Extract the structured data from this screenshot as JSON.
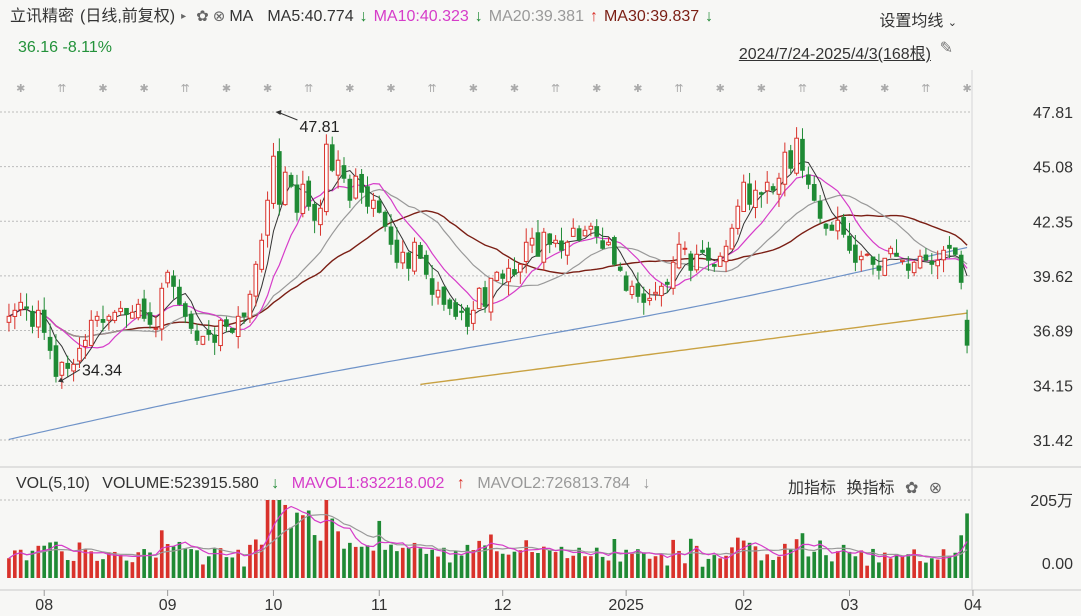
{
  "header": {
    "stock_name": "立讯精密",
    "period_mode": "(日线,前复权)",
    "ma_label": "MA",
    "ma5": "MA5:40.774",
    "ma10": "MA10:40.323",
    "ma20": "MA20:39.381",
    "ma30": "MA30:39.837",
    "ma5_arrow": "↓",
    "ma10_arrow": "↓",
    "ma20_arrow": "↑",
    "ma30_arrow": "↓",
    "settings_label": "设置均线",
    "price": "36.16",
    "change_pct": "-8.11%",
    "date_range": "2024/7/24-2025/4/3(168根)"
  },
  "volume_header": {
    "title": "VOL(5,10)",
    "volume": "VOLUME:523915.580",
    "volume_arrow": "↓",
    "mavol1": "MAVOL1:832218.002",
    "mavol1_arrow": "↑",
    "mavol2": "MAVOL2:726813.784",
    "mavol2_arrow": "↓",
    "add_indicator": "加指标",
    "switch_indicator": "换指标"
  },
  "colors": {
    "up": "#d9322b",
    "down": "#1f8a34",
    "ma5": "#333333",
    "ma10": "#d63cc9",
    "ma20": "#999999",
    "ma30": "#7a1e14",
    "ma_long": "#6f93c8",
    "ma_extra": "#c9a243"
  },
  "chart_data": {
    "type": "candlestick",
    "price_axis_ticks": [
      "47.81",
      "45.08",
      "42.35",
      "39.62",
      "36.89",
      "34.15",
      "31.42"
    ],
    "price_range": [
      31.42,
      47.81
    ],
    "volume_axis_ticks": [
      "205万",
      "0.00"
    ],
    "volume_range_wan": [
      0,
      205
    ],
    "x_tick_labels": [
      "08",
      "09",
      "10",
      "11",
      "12",
      "2025",
      "02",
      "03",
      "04"
    ],
    "x_tick_index": [
      6,
      27,
      45,
      63,
      84,
      105,
      125,
      143,
      164
    ],
    "max_annotation": {
      "label": "47.81",
      "index": 45,
      "value": 47.81
    },
    "min_annotation": {
      "label": "34.34",
      "index": 8,
      "value": 34.34
    },
    "candles_close": [
      37.6,
      37.9,
      38.3,
      38.0,
      37.1,
      37.9,
      36.8,
      35.9,
      34.6,
      35.3,
      35.0,
      35.2,
      36.0,
      36.4,
      37.4,
      37.6,
      37.3,
      37.6,
      37.8,
      38.0,
      37.7,
      37.8,
      38.2,
      37.5,
      37.2,
      37.0,
      39.0,
      39.8,
      39.1,
      38.2,
      37.6,
      37.0,
      36.4,
      36.6,
      36.7,
      36.3,
      37.4,
      37.1,
      36.8,
      37.6,
      37.6,
      38.7,
      40.2,
      41.4,
      43.4,
      45.6,
      43.2,
      44.8,
      44.1,
      42.8,
      44.2,
      43.1,
      42.4,
      43.0,
      46.2,
      44.9,
      45.4,
      44.5,
      43.4,
      44.6,
      43.8,
      43.1,
      43.4,
      42.8,
      42.1,
      41.2,
      40.3,
      40.8,
      40.0,
      41.3,
      40.5,
      39.7,
      38.7,
      38.9,
      38.2,
      38.0,
      37.6,
      37.8,
      37.1,
      37.9,
      39.0,
      38.1,
      39.5,
      39.8,
      39.5,
      40.0,
      39.7,
      40.2,
      41.3,
      41.5,
      40.6,
      41.8,
      41.2,
      41.4,
      40.9,
      41.3,
      42.0,
      41.4,
      41.9,
      42.1,
      41.6,
      41.0,
      41.3,
      40.2,
      39.9,
      38.9,
      39.1,
      38.6,
      38.3,
      38.5,
      38.8,
      39.1,
      39.2,
      40.3,
      41.2,
      41.0,
      39.9,
      40.7,
      40.8,
      40.4,
      40.1,
      40.6,
      41.1,
      42.0,
      43.1,
      44.3,
      43.2,
      43.9,
      43.7,
      44.3,
      43.9,
      44.5,
      45.8,
      45.0,
      46.5,
      44.9,
      44.2,
      43.4,
      42.5,
      42.0,
      41.9,
      42.4,
      41.7,
      40.9,
      40.3,
      40.6,
      40.7,
      40.2,
      39.9,
      40.5,
      41.0,
      40.6,
      40.4,
      39.9,
      40.3,
      40.6,
      40.4,
      40.2,
      40.4,
      40.9,
      41.0,
      40.7,
      39.3,
      36.16
    ],
    "series_names": [
      "MA5",
      "MA10",
      "MA20",
      "MA30",
      "MAVOL1",
      "MAVOL2"
    ]
  }
}
